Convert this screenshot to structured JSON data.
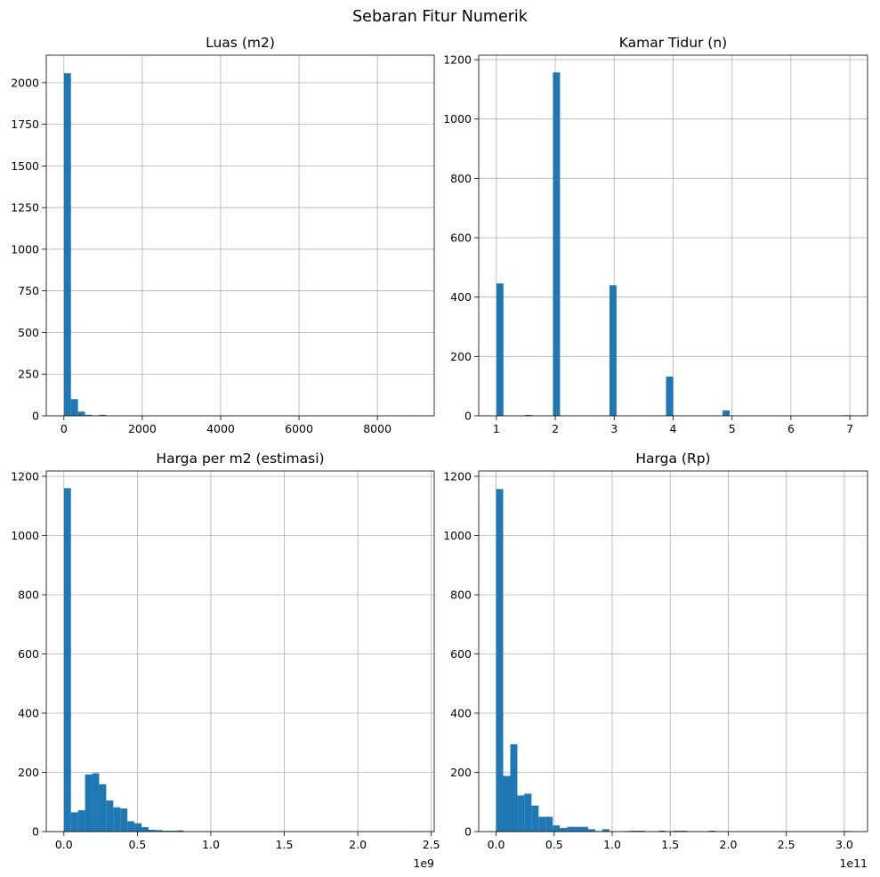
{
  "figure": {
    "title": "Sebaran Fitur Numerik"
  },
  "chart_data": [
    {
      "type": "bar",
      "title": "Luas (m2)",
      "xlabel": "",
      "ylabel": "",
      "xlim": [
        -450,
        9450
      ],
      "ylim": [
        0,
        2165
      ],
      "grid": true,
      "bar_color": "#1f77b4",
      "bin_start": 0,
      "bin_width": 180,
      "counts": [
        2057,
        100,
        25,
        6,
        2,
        6,
        0,
        0,
        0,
        0,
        0,
        0,
        0,
        0,
        0,
        0,
        0,
        0,
        0,
        0,
        0,
        0,
        0,
        0,
        0,
        0,
        0,
        0,
        0,
        0,
        0,
        0,
        0,
        0,
        0,
        0,
        0,
        0,
        0,
        0,
        0,
        0,
        0,
        0,
        0,
        0,
        0,
        0,
        0,
        1
      ],
      "xticks": [
        0,
        2000,
        4000,
        6000,
        8000
      ],
      "xtick_labels": [
        "0",
        "2000",
        "4000",
        "6000",
        "8000"
      ],
      "yticks": [
        0,
        250,
        500,
        750,
        1000,
        1250,
        1500,
        1750,
        2000
      ],
      "ytick_labels": [
        "0",
        "250",
        "500",
        "750",
        "1000",
        "1250",
        "1500",
        "1750",
        "2000"
      ],
      "offset_text": ""
    },
    {
      "type": "bar",
      "title": "Kamar Tidur (n)",
      "xlabel": "",
      "ylabel": "",
      "xlim": [
        0.7,
        7.3
      ],
      "ylim": [
        0,
        1215
      ],
      "grid": true,
      "bar_color": "#1f77b4",
      "bin_start": 1,
      "bin_width": 0.12,
      "counts": [
        446,
        0,
        0,
        0,
        3,
        0,
        0,
        0,
        1157,
        0,
        0,
        0,
        0,
        0,
        0,
        0,
        440,
        0,
        0,
        0,
        0,
        0,
        0,
        0,
        132,
        0,
        0,
        0,
        0,
        0,
        0,
        0,
        18,
        0,
        0,
        0,
        0,
        0,
        0,
        0,
        0,
        0,
        0,
        0,
        0,
        0,
        0,
        0,
        0,
        2
      ],
      "xticks": [
        1,
        2,
        3,
        4,
        5,
        6,
        7
      ],
      "xtick_labels": [
        "1",
        "2",
        "3",
        "4",
        "5",
        "6",
        "7"
      ],
      "yticks": [
        0,
        200,
        400,
        600,
        800,
        1000,
        1200
      ],
      "ytick_labels": [
        "0",
        "200",
        "400",
        "600",
        "800",
        "1000",
        "1200"
      ],
      "offset_text": ""
    },
    {
      "type": "bar",
      "title": "Harga per m2 (estimasi)",
      "xlabel": "",
      "ylabel": "",
      "xlim": [
        -0.12,
        2.52
      ],
      "ylim": [
        0,
        1218
      ],
      "grid": true,
      "bar_color": "#1f77b4",
      "bin_start": 0,
      "bin_width": 0.048,
      "counts": [
        1160,
        65,
        72,
        193,
        197,
        160,
        105,
        82,
        78,
        35,
        28,
        15,
        6,
        5,
        3,
        3,
        4,
        0,
        0,
        0,
        0,
        0,
        0,
        0,
        0,
        0,
        0,
        0,
        0,
        0,
        0,
        0,
        0,
        0,
        0,
        0,
        0,
        0,
        0,
        0,
        0,
        0,
        0,
        0,
        0,
        0,
        0,
        0,
        0,
        1
      ],
      "xticks": [
        0,
        0.5,
        1,
        1.5,
        2,
        2.5
      ],
      "xtick_labels": [
        "0.0",
        "0.5",
        "1.0",
        "1.5",
        "2.0",
        "2.5"
      ],
      "yticks": [
        0,
        200,
        400,
        600,
        800,
        1000,
        1200
      ],
      "ytick_labels": [
        "0",
        "200",
        "400",
        "600",
        "800",
        "1000",
        "1200"
      ],
      "offset_text": "1e9"
    },
    {
      "type": "bar",
      "title": "Harga (Rp)",
      "xlabel": "",
      "ylabel": "",
      "xlim": [
        -0.15,
        3.2
      ],
      "ylim": [
        0,
        1218
      ],
      "grid": true,
      "bar_color": "#1f77b4",
      "bin_start": 0,
      "bin_width": 0.061,
      "counts": [
        1157,
        188,
        295,
        122,
        128,
        88,
        50,
        50,
        21,
        12,
        16,
        16,
        16,
        8,
        2,
        8,
        1,
        0,
        2,
        3,
        3,
        1,
        0,
        3,
        0,
        3,
        3,
        0,
        1,
        0,
        3,
        0,
        0,
        0,
        0,
        0,
        0,
        0,
        0,
        0,
        0,
        0,
        0,
        0,
        0,
        0,
        0,
        0,
        0,
        2
      ],
      "xticks": [
        0,
        0.5,
        1,
        1.5,
        2,
        2.5,
        3
      ],
      "xtick_labels": [
        "0.0",
        "0.5",
        "1.0",
        "1.5",
        "2.0",
        "2.5",
        "3.0"
      ],
      "yticks": [
        0,
        200,
        400,
        600,
        800,
        1000,
        1200
      ],
      "ytick_labels": [
        "0",
        "200",
        "400",
        "600",
        "800",
        "1000",
        "1200"
      ],
      "offset_text": "1e11"
    }
  ]
}
